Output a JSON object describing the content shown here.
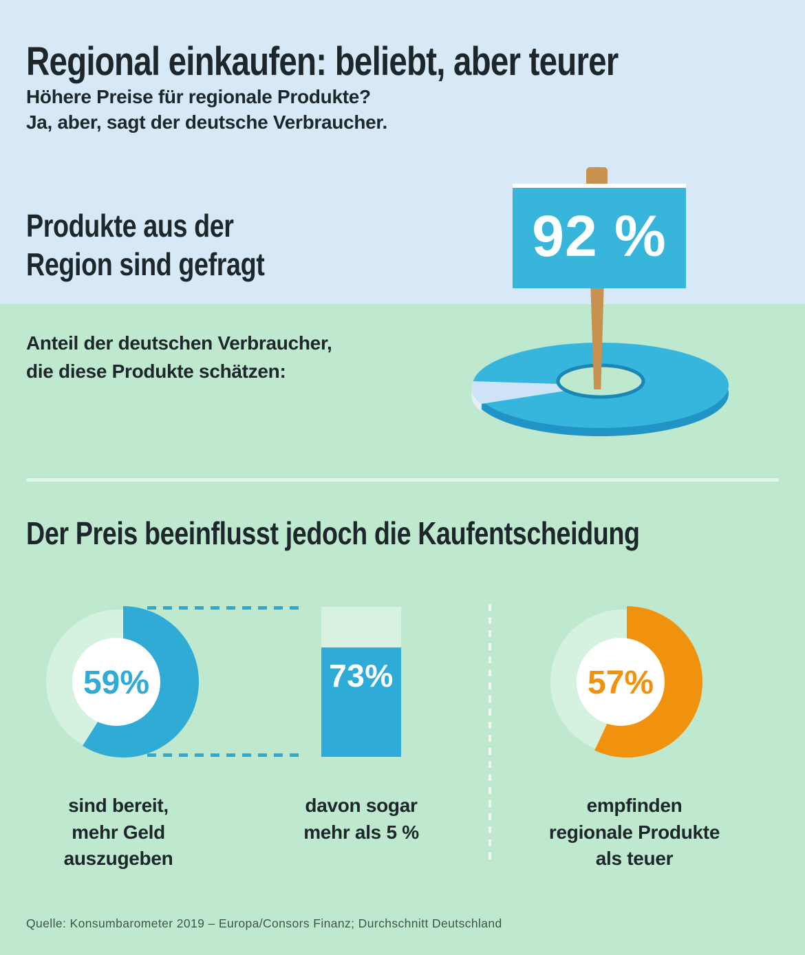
{
  "header": {
    "title": "Regional einkaufen: beliebt, aber teurer",
    "subtitle_lines": [
      "Höhere Preise für regionale Produkte?",
      "Ja, aber, sagt der deutsche Verbraucher."
    ]
  },
  "demand_section": {
    "heading_lines": [
      "Produkte aus der",
      "Region sind gefragt"
    ],
    "caption_lines": [
      "Anteil der deutschen Verbraucher,",
      "die diese Produkte schätzen:"
    ],
    "sign_value": "92 %"
  },
  "price_section": {
    "heading": "Der Preis beeinflusst jedoch die Kaufentscheidung",
    "stats": [
      {
        "value": "59%",
        "pct": 59,
        "label_lines": [
          "sind bereit,",
          "mehr Geld",
          "auszugeben"
        ]
      },
      {
        "value": "73%",
        "pct": 73,
        "label_lines": [
          "davon sogar",
          "mehr als 5 %"
        ]
      },
      {
        "value": "57%",
        "pct": 57,
        "label_lines": [
          "empfinden",
          "regionale Produkte",
          "als teuer"
        ]
      }
    ]
  },
  "footer": {
    "source": "Quelle: Konsumbarometer 2019 – Europa/Consors Finanz; Durchschnitt Deutschland"
  },
  "colors": {
    "bg_top": "#d7e9f7",
    "bg_bottom": "#bee9ce",
    "primary_blue": "#38b5da",
    "arc_blue": "#2fabd5",
    "bar_blue": "#2fabd7",
    "donut_top_blue": "#36b6dc",
    "donut_depth_blue": "#2095c5",
    "hole_rim_blue": "#1a87b6",
    "slice_light_blue": "#cfe3f6",
    "slice_edge": "#e7ecfa",
    "mint_track": "#d5f1df",
    "bar_rest_mint": "#d8f2e1",
    "orange": "#f1920e",
    "post_brown": "#c9914f",
    "text_dark": "#1d262b",
    "source_text": "#40534b",
    "white": "#ffffff"
  },
  "chart_data": [
    {
      "type": "pie",
      "style": "3d-donut",
      "title": "Produkte aus der Region sind gefragt",
      "subtitle": "Anteil der deutschen Verbraucher, die diese Produkte schätzen",
      "labels": [
        "schätzen regionale Produkte",
        "Rest"
      ],
      "values": [
        92,
        8
      ],
      "unit": "%",
      "colors": [
        "#36b6dc",
        "#cfe3f6"
      ],
      "annotation": "92 %"
    },
    {
      "type": "pie",
      "style": "donut",
      "title": "sind bereit, mehr Geld auszugeben",
      "labels": [
        "sind bereit",
        "Rest"
      ],
      "values": [
        59,
        41
      ],
      "unit": "%",
      "colors": [
        "#2fabd5",
        "#d5f1df"
      ],
      "annotation": "59%"
    },
    {
      "type": "bar",
      "title": "davon sogar mehr als 5 %",
      "categories": [
        "davon sogar mehr als 5 %"
      ],
      "values": [
        73
      ],
      "unit": "%",
      "ylim": [
        0,
        100
      ],
      "colors": [
        "#2fabd7"
      ],
      "annotation": "73%"
    },
    {
      "type": "pie",
      "style": "donut",
      "title": "empfinden regionale Produkte als teuer",
      "labels": [
        "empfinden als teuer",
        "Rest"
      ],
      "values": [
        57,
        43
      ],
      "unit": "%",
      "colors": [
        "#f1920e",
        "#d5f1df"
      ],
      "annotation": "57%"
    }
  ]
}
